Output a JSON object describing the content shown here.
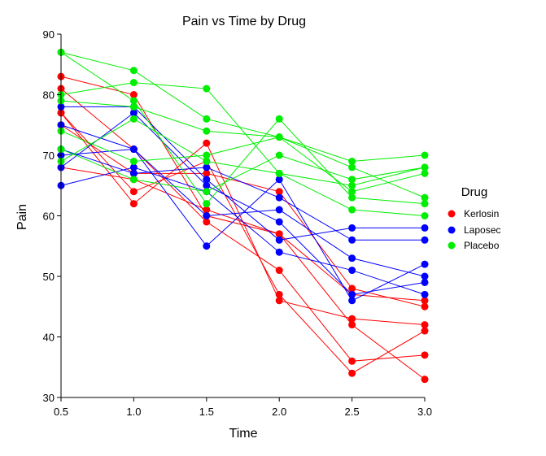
{
  "chart_data": {
    "type": "line",
    "title": "Pain vs Time by Drug",
    "xlabel": "Time",
    "ylabel": "Pain",
    "xlim": [
      0.5,
      3.0
    ],
    "ylim": [
      30,
      90
    ],
    "x": [
      0.5,
      1.0,
      1.5,
      2.0,
      2.5,
      3.0
    ],
    "x_ticks": [
      "0.5",
      "1.0",
      "1.5",
      "2.0",
      "2.5",
      "3.0"
    ],
    "y_ticks": [
      "30",
      "40",
      "50",
      "60",
      "70",
      "80",
      "90"
    ],
    "grid": false,
    "legend": {
      "title": "Drug",
      "position": "right",
      "entries": [
        "Kerlosin",
        "Laposec",
        "Placebo"
      ]
    },
    "colors": {
      "Kerlosin": "#ff0000",
      "Laposec": "#0000ff",
      "Placebo": "#00ee00"
    },
    "series": [
      {
        "name": "Kerlosin",
        "subject": 1,
        "values": [
          83,
          80,
          60,
          57,
          42,
          33
        ]
      },
      {
        "name": "Kerlosin",
        "subject": 2,
        "values": [
          81,
          71,
          59,
          51,
          36,
          37
        ]
      },
      {
        "name": "Kerlosin",
        "subject": 3,
        "values": [
          77,
          64,
          69,
          47,
          34,
          41
        ]
      },
      {
        "name": "Kerlosin",
        "subject": 4,
        "values": [
          77,
          62,
          72,
          46,
          43,
          42
        ]
      },
      {
        "name": "Kerlosin",
        "subject": 5,
        "values": [
          75,
          67,
          67,
          64,
          48,
          45
        ]
      },
      {
        "name": "Kerlosin",
        "subject": 6,
        "values": [
          68,
          66,
          61,
          57,
          47,
          46
        ]
      },
      {
        "name": "Laposec",
        "subject": 1,
        "values": [
          78,
          78,
          66,
          56,
          58,
          58
        ]
      },
      {
        "name": "Laposec",
        "subject": 2,
        "values": [
          75,
          71,
          55,
          66,
          46,
          52
        ]
      },
      {
        "name": "Laposec",
        "subject": 3,
        "values": [
          71,
          67,
          68,
          63,
          56,
          56
        ]
      },
      {
        "name": "Laposec",
        "subject": 4,
        "values": [
          70,
          71,
          60,
          61,
          53,
          50
        ]
      },
      {
        "name": "Laposec",
        "subject": 5,
        "values": [
          68,
          77,
          65,
          59,
          47,
          49
        ]
      },
      {
        "name": "Laposec",
        "subject": 6,
        "values": [
          65,
          68,
          64,
          54,
          51,
          47
        ]
      },
      {
        "name": "Placebo",
        "subject": 1,
        "values": [
          87,
          84,
          76,
          73,
          64,
          67
        ]
      },
      {
        "name": "Placebo",
        "subject": 2,
        "values": [
          87,
          79,
          62,
          76,
          63,
          62
        ]
      },
      {
        "name": "Placebo",
        "subject": 3,
        "values": [
          80,
          82,
          81,
          67,
          61,
          60
        ]
      },
      {
        "name": "Placebo",
        "subject": 4,
        "values": [
          79,
          78,
          74,
          73,
          69,
          70
        ]
      },
      {
        "name": "Placebo",
        "subject": 5,
        "values": [
          74,
          69,
          70,
          73,
          68,
          63
        ]
      },
      {
        "name": "Placebo",
        "subject": 6,
        "values": [
          71,
          66,
          64,
          70,
          66,
          68
        ]
      },
      {
        "name": "Placebo",
        "subject": 7,
        "values": [
          69,
          76,
          69,
          67,
          65,
          68
        ]
      }
    ]
  }
}
